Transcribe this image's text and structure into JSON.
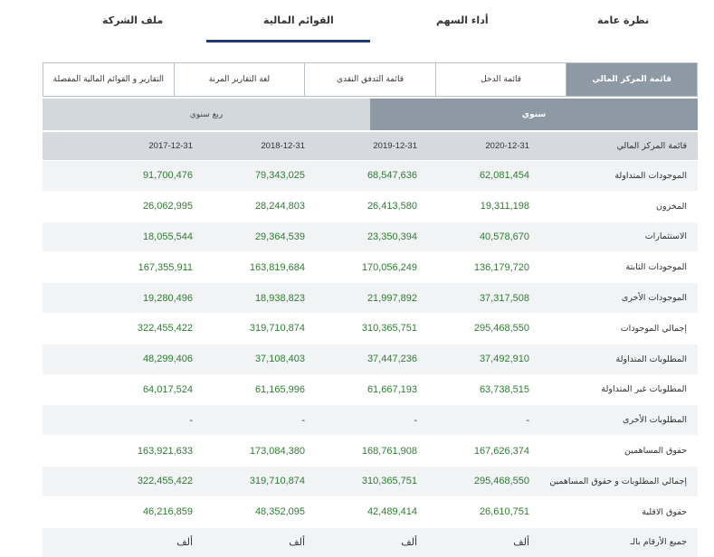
{
  "top_tabs": [
    {
      "label": "نظرة عامة"
    },
    {
      "label": "أداء السهم"
    },
    {
      "label": "القوائم المالية"
    },
    {
      "label": "ملف الشركة"
    }
  ],
  "sub_tabs": [
    {
      "label": "قائمة المركز المالي"
    },
    {
      "label": "قائمة الدخل"
    },
    {
      "label": "قائمة التدفق النقدي"
    },
    {
      "label": "لغة التقارير المرنة"
    },
    {
      "label": "التقارير و القوائم المالية المفصلة"
    }
  ],
  "period": {
    "annual": "سنوي",
    "quarter": "ربع سنوي"
  },
  "table": {
    "header": {
      "label": "قائمة المركز المالي",
      "cols": [
        "2020-12-31",
        "2019-12-31",
        "2018-12-31",
        "2017-12-31"
      ]
    },
    "rows": [
      {
        "label": "الموجودات المتداولة",
        "vals": [
          "62,081,454",
          "68,547,636",
          "79,343,025",
          "91,700,476"
        ]
      },
      {
        "label": "المخزون",
        "vals": [
          "19,311,198",
          "26,413,580",
          "28,244,803",
          "26,062,995"
        ]
      },
      {
        "label": "الاستثمارات",
        "vals": [
          "40,578,670",
          "23,350,394",
          "29,364,539",
          "18,055,544"
        ]
      },
      {
        "label": "الموجودات الثابتة",
        "vals": [
          "136,179,720",
          "170,056,249",
          "163,819,684",
          "167,355,911"
        ]
      },
      {
        "label": "الموجودات الأخرى",
        "vals": [
          "37,317,508",
          "21,997,892",
          "18,938,823",
          "19,280,496"
        ]
      },
      {
        "label": "إجمالي الموجودات",
        "vals": [
          "295,468,550",
          "310,365,751",
          "319,710,874",
          "322,455,422"
        ]
      },
      {
        "label": "المطلوبات المتداولة",
        "vals": [
          "37,492,910",
          "37,447,236",
          "37,108,403",
          "48,299,406"
        ]
      },
      {
        "label": "المطلوبات غير المتداولة",
        "vals": [
          "63,738,515",
          "61,667,193",
          "61,165,996",
          "64,017,524"
        ]
      },
      {
        "label": "المطلوبات الأخرى",
        "vals": [
          "-",
          "-",
          "-",
          "-"
        ]
      },
      {
        "label": "حقوق المساهمين",
        "vals": [
          "167,626,374",
          "168,761,908",
          "173,084,380",
          "163,921,633"
        ]
      },
      {
        "label": "إجمالي المطلوبات و حقوق المساهمين",
        "vals": [
          "295,468,550",
          "310,365,751",
          "319,710,874",
          "322,455,422"
        ]
      },
      {
        "label": "حقوق الاقلية",
        "vals": [
          "26,610,751",
          "42,489,414",
          "48,352,095",
          "46,216,859"
        ]
      },
      {
        "label": "جميع الأرقام بالـ",
        "vals": [
          "ألف",
          "ألف",
          "ألف",
          "ألف"
        ]
      }
    ]
  }
}
